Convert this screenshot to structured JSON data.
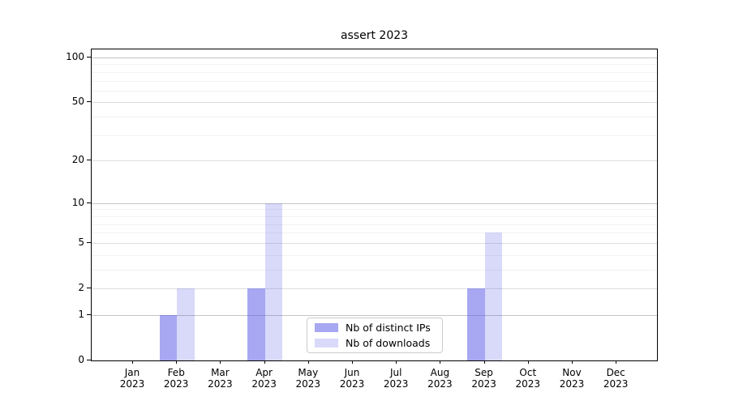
{
  "chart_data": {
    "type": "bar",
    "title": "assert 2023",
    "xlabel": "",
    "ylabel": "",
    "categories": [
      "Jan 2023",
      "Feb 2023",
      "Mar 2023",
      "Apr 2023",
      "May 2023",
      "Jun 2023",
      "Jul 2023",
      "Aug 2023",
      "Sep 2023",
      "Oct 2023",
      "Nov 2023",
      "Dec 2023"
    ],
    "series": [
      {
        "name": "Nb of distinct IPs",
        "values": [
          0,
          1,
          0,
          2,
          0,
          0,
          0,
          0,
          2,
          0,
          0,
          0
        ]
      },
      {
        "name": "Nb of downloads",
        "values": [
          0,
          2,
          0,
          10,
          0,
          0,
          0,
          0,
          6,
          0,
          0,
          0
        ]
      }
    ],
    "yscale": "log1p",
    "ylim": [
      0,
      113
    ],
    "y_major_ticks": [
      0,
      1,
      2,
      5,
      10,
      20,
      50,
      100
    ],
    "y_minor_ticks": [
      3,
      4,
      6,
      7,
      8,
      9,
      30,
      40,
      60,
      70,
      80,
      90
    ],
    "grid": true,
    "legend_position": "lower-center"
  },
  "colors": {
    "ips_bar": "rgba(80,80,230,0.50)",
    "ips_bar_hex": "#a8a8f5",
    "downloads_bar": "rgba(80,80,230,0.22)",
    "downloads_bar_hex": "#d9d9f8",
    "grid_decade": "#c4c4c4",
    "grid_sub": "#dedede",
    "grid_minor": "#f2f2f2",
    "spine": "#000000",
    "legend_border": "#cccccc"
  }
}
